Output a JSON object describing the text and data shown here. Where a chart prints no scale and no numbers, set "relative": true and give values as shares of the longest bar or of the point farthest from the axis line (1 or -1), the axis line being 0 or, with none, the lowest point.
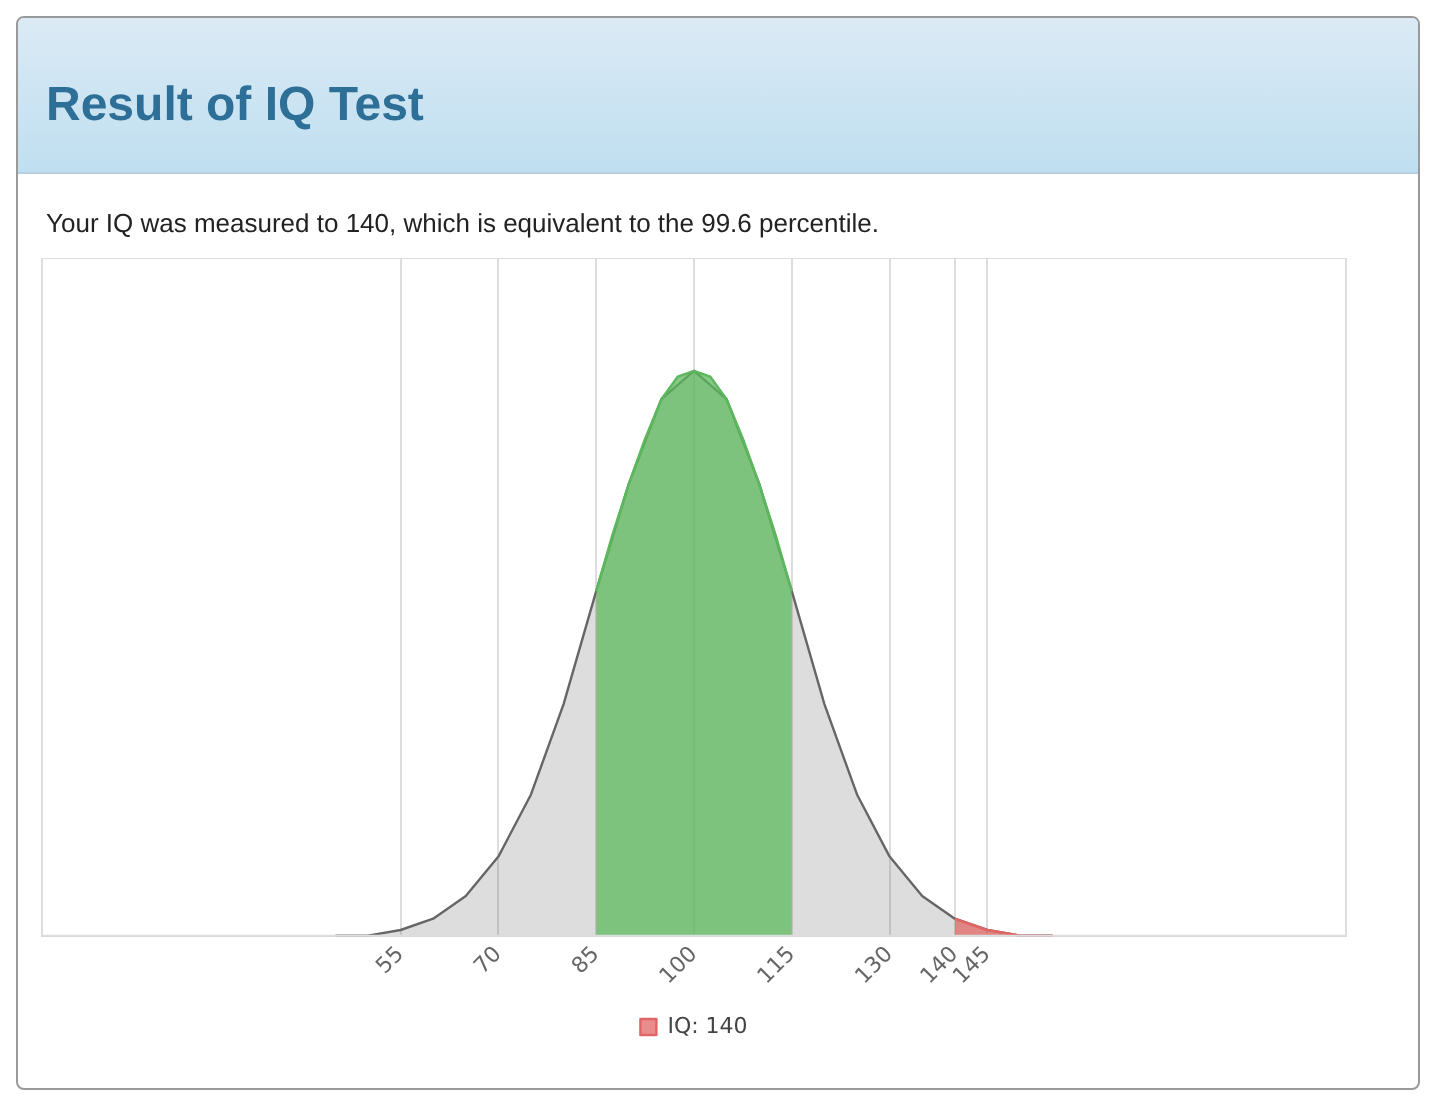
{
  "chart_data": {
    "type": "area",
    "title": "Result of IQ Test",
    "subtitle": "Your IQ was measured to 140, which is equivalent to the 99.6 percentile.",
    "relative": true,
    "xlim": [
      0,
      200
    ],
    "xticks": [
      55,
      70,
      85,
      100,
      115,
      130,
      140,
      145
    ],
    "grid": "x",
    "legend": "bottom",
    "series": [
      {
        "color": "#666666",
        "x": [
          45,
          50,
          55,
          60,
          65,
          70,
          75,
          80,
          85,
          90,
          95,
          100,
          105,
          110,
          115,
          120,
          125,
          130,
          135,
          140,
          145,
          150,
          155
        ],
        "values": [
          0.0,
          0.0,
          0.01,
          0.03,
          0.07,
          0.14,
          0.25,
          0.41,
          0.61,
          0.8,
          0.95,
          1,
          0.95,
          0.8,
          0.61,
          0.41,
          0.25,
          0.14,
          0.07,
          0.03,
          0.01,
          0.0,
          0.0
        ]
      },
      {
        "color": "#5cb85c",
        "x": [
          85,
          87.5,
          90,
          92.5,
          95,
          97.5,
          100,
          102.5,
          105,
          107.5,
          110,
          112.5,
          115
        ],
        "values": [
          0.61,
          0.71,
          0.8,
          0.88,
          0.95,
          0.99,
          1,
          0.99,
          0.95,
          0.88,
          0.8,
          0.71,
          0.61
        ]
      },
      {
        "name": "IQ: 140",
        "color": "#e06666",
        "x": [
          140,
          145,
          150,
          155
        ],
        "values": [
          0.03,
          0.01,
          0.0,
          0.0
        ]
      }
    ]
  }
}
